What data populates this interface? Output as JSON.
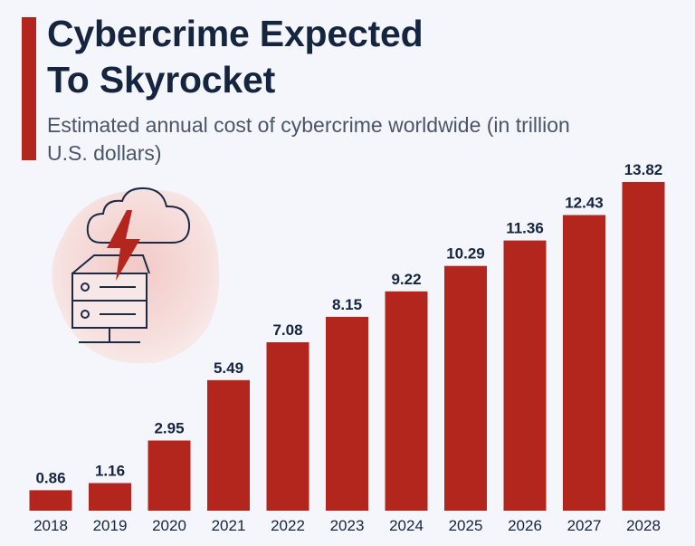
{
  "title": "Cybercrime Expected\nTo Skyrocket",
  "subtitle": "Estimated annual cost of cybercrime worldwide (in trillion U.S. dollars)",
  "colors": {
    "bar": "#b3261e",
    "accent": "#b3261e",
    "title": "#15253f",
    "text": "#4a5568",
    "background": "#f4f6fb"
  },
  "illustration": {
    "icons": [
      "cloud-icon",
      "lightning-bolt-icon",
      "server-icon"
    ]
  },
  "chart_data": {
    "type": "bar",
    "categories": [
      "2018",
      "2019",
      "2020",
      "2021",
      "2022",
      "2023",
      "2024",
      "2025",
      "2026",
      "2027",
      "2028"
    ],
    "values": [
      0.86,
      1.16,
      2.95,
      5.49,
      7.08,
      8.15,
      9.22,
      10.29,
      11.36,
      12.43,
      13.82
    ],
    "value_labels": [
      "0.86",
      "1.16",
      "2.95",
      "5.49",
      "7.08",
      "8.15",
      "9.22",
      "10.29",
      "11.36",
      "12.43",
      "13.82"
    ],
    "title": "Cybercrime Expected To Skyrocket",
    "xlabel": "",
    "ylabel": "",
    "ylim": [
      0,
      13.82
    ],
    "grid": false,
    "legend": "none"
  }
}
